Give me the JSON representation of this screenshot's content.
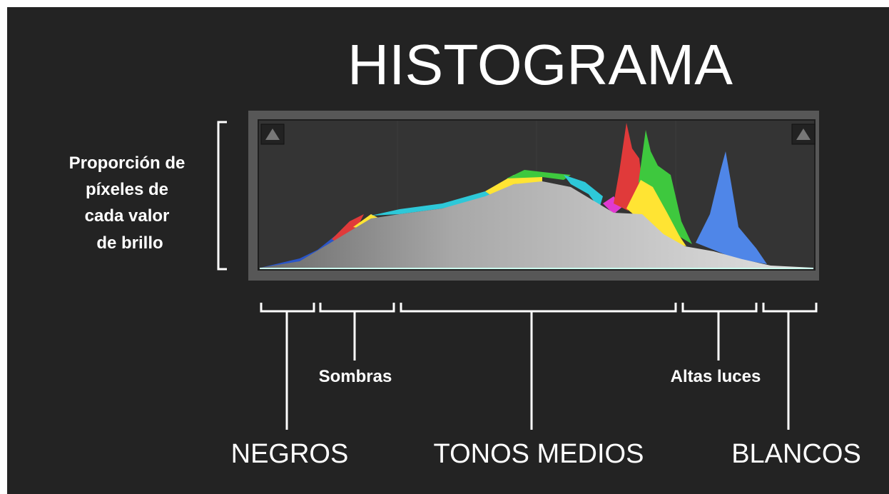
{
  "title": "HISTOGRAMA",
  "axis_label": [
    "Proporción de",
    "píxeles de",
    "cada valor",
    "de brillo"
  ],
  "sub_labels": [
    "Sombras",
    "Altas luces"
  ],
  "zone_labels": [
    "NEGROS",
    "TONOS MEDIOS",
    "BLANCOS"
  ]
}
